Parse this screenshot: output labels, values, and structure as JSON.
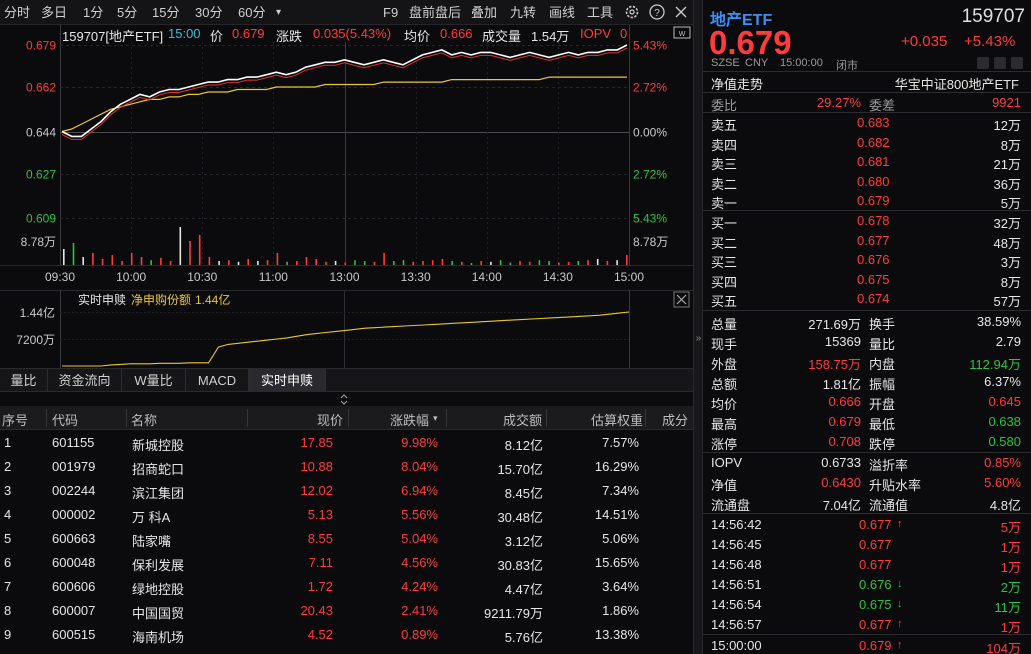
{
  "toolbar": {
    "items": [
      "分时",
      "多日",
      "1分",
      "5分",
      "15分",
      "30分",
      "60分"
    ],
    "right_items": [
      "F9",
      "盘前盘后",
      "叠加",
      "九转",
      "画线",
      "工具"
    ],
    "dropdown_glyph": "▾"
  },
  "chart_info": {
    "code_name": "159707[地产ETF]",
    "time": "15:00",
    "price_label": "价",
    "price": "0.679",
    "change_label": "涨跌",
    "change": "0.035(5.43%)",
    "avg_label": "均价",
    "avg": "0.666",
    "volume_label": "成交量",
    "volume": "1.54万",
    "iopv_label": "IOPV",
    "iopv": "0"
  },
  "chart_data": {
    "type": "line",
    "price_axis": [
      "0.679",
      "0.662",
      "0.644",
      "0.627",
      "0.609"
    ],
    "pct_axis": [
      "5.43%",
      "2.72%",
      "0.00%",
      "2.72%",
      "5.43%"
    ],
    "volume_axis_label": "8.78万",
    "time_axis": [
      "09:30",
      "10:00",
      "10:30",
      "11:00",
      "13:00",
      "13:30",
      "14:00",
      "14:30",
      "15:00"
    ],
    "ylim": [
      0.609,
      0.679
    ],
    "prev_close": 0.644,
    "series": [
      {
        "name": "价",
        "color": "#ffffff",
        "values": [
          0.644,
          0.642,
          0.642,
          0.645,
          0.648,
          0.652,
          0.655,
          0.657,
          0.659,
          0.658,
          0.66,
          0.661,
          0.661,
          0.662,
          0.663,
          0.664,
          0.664,
          0.665,
          0.665,
          0.666,
          0.666,
          0.667,
          0.668,
          0.667,
          0.668,
          0.67,
          0.671,
          0.672,
          0.672,
          0.673,
          0.672,
          0.671,
          0.672,
          0.673,
          0.672,
          0.671,
          0.673,
          0.675,
          0.676,
          0.677,
          0.675,
          0.676,
          0.675,
          0.676,
          0.676,
          0.675,
          0.674,
          0.675,
          0.676,
          0.675,
          0.674,
          0.675,
          0.676,
          0.675,
          0.676,
          0.676,
          0.677,
          0.677,
          0.679
        ]
      },
      {
        "name": "均价",
        "color": "#e8c63a",
        "values": [
          0.644,
          0.645,
          0.647,
          0.649,
          0.651,
          0.653,
          0.654,
          0.655,
          0.656,
          0.657,
          0.657,
          0.658,
          0.658,
          0.659,
          0.659,
          0.66,
          0.66,
          0.66,
          0.661,
          0.661,
          0.661,
          0.661,
          0.662,
          0.662,
          0.662,
          0.662,
          0.662,
          0.663,
          0.663,
          0.663,
          0.663,
          0.663,
          0.663,
          0.664,
          0.664,
          0.664,
          0.664,
          0.664,
          0.664,
          0.664,
          0.665,
          0.665,
          0.665,
          0.665,
          0.665,
          0.665,
          0.665,
          0.665,
          0.665,
          0.665,
          0.666,
          0.666,
          0.666,
          0.666,
          0.666,
          0.666,
          0.666,
          0.666,
          0.666
        ]
      }
    ],
    "volume_bars": [
      0.4,
      0.55,
      0.2,
      0.3,
      0.15,
      0.25,
      0.1,
      0.3,
      0.2,
      0.12,
      0.18,
      0.1,
      0.95,
      0.6,
      0.75,
      0.2,
      0.1,
      0.12,
      0.08,
      0.15,
      0.1,
      0.12,
      0.3,
      0.08,
      0.1,
      0.2,
      0.15,
      0.08,
      0.1,
      0.06,
      0.12,
      0.1,
      0.08,
      0.3,
      0.1,
      0.12,
      0.08,
      0.1,
      0.12,
      0.15,
      0.1,
      0.08,
      0.05,
      0.1,
      0.08,
      0.12,
      0.06,
      0.1,
      0.08,
      0.12,
      0.1,
      0.06,
      0.08,
      0.1,
      0.12,
      0.15,
      0.1,
      0.12,
      0.25
    ]
  },
  "sub_chart": {
    "label": "实时申赎",
    "metric_label": "净申购份额",
    "metric_value": "1.44亿",
    "axis": [
      "1.44亿",
      "7200万"
    ],
    "values": [
      0.0,
      0.0,
      0.0,
      0.0,
      0.0,
      0.02,
      0.03,
      0.04,
      0.04,
      0.04,
      0.05,
      0.05,
      0.05,
      0.06,
      0.06,
      0.06,
      0.35,
      0.4,
      0.42,
      0.44,
      0.46,
      0.48,
      0.5,
      0.52,
      0.55,
      0.58,
      0.6,
      0.62,
      0.64,
      0.66,
      0.68,
      0.7,
      0.71,
      0.72,
      0.73,
      0.74,
      0.75,
      0.76,
      0.77,
      0.78,
      0.79,
      0.8,
      0.81,
      0.82,
      0.83,
      0.84,
      0.85,
      0.86,
      0.87,
      0.88,
      0.89,
      0.9,
      0.91,
      0.92,
      0.93,
      0.94,
      0.96,
      0.98,
      1.0
    ]
  },
  "sub_tabs": [
    "量比",
    "资金流向",
    "W量比",
    "MACD",
    "实时申赎"
  ],
  "table": {
    "headers": [
      "序号",
      "代码",
      "名称",
      "现价",
      "涨跌幅",
      "成交额",
      "估算权重",
      "成分"
    ],
    "rows": [
      {
        "no": "1",
        "code": "601155",
        "name": "新城控股",
        "price": "17.85",
        "pct": "9.98%",
        "amount": "8.12亿",
        "weight": "7.57%"
      },
      {
        "no": "2",
        "code": "001979",
        "name": "招商蛇口",
        "price": "10.88",
        "pct": "8.04%",
        "amount": "15.70亿",
        "weight": "16.29%"
      },
      {
        "no": "3",
        "code": "002244",
        "name": "滨江集团",
        "price": "12.02",
        "pct": "6.94%",
        "amount": "8.45亿",
        "weight": "7.34%"
      },
      {
        "no": "4",
        "code": "000002",
        "name": "万 科A",
        "price": "5.13",
        "pct": "5.56%",
        "amount": "30.48亿",
        "weight": "14.51%"
      },
      {
        "no": "5",
        "code": "600663",
        "name": "陆家嘴",
        "price": "8.55",
        "pct": "5.04%",
        "amount": "3.12亿",
        "weight": "5.06%"
      },
      {
        "no": "6",
        "code": "600048",
        "name": "保利发展",
        "price": "7.11",
        "pct": "4.56%",
        "amount": "30.83亿",
        "weight": "15.65%"
      },
      {
        "no": "7",
        "code": "600606",
        "name": "绿地控股",
        "price": "1.72",
        "pct": "4.24%",
        "amount": "4.47亿",
        "weight": "3.64%"
      },
      {
        "no": "8",
        "code": "600007",
        "name": "中国国贸",
        "price": "20.43",
        "pct": "2.41%",
        "amount": "9211.79万",
        "weight": "1.86%"
      },
      {
        "no": "9",
        "code": "600515",
        "name": "海南机场",
        "price": "4.52",
        "pct": "0.89%",
        "amount": "5.76亿",
        "weight": "13.38%"
      }
    ]
  },
  "quote": {
    "name": "地产ETF",
    "code": "159707",
    "price": "0.679",
    "change": "+0.035",
    "pct": "+5.43%",
    "exchange": "SZSE",
    "currency": "CNY",
    "time": "15:00:00",
    "status": "闭市",
    "nav_trend": "净值走势",
    "index_name": "华宝中证800地产ETF",
    "weibi_label": "委比",
    "weibi": "29.27%",
    "weicha_label": "委差",
    "weicha": "9921"
  },
  "asks": [
    {
      "label": "卖五",
      "price": "0.683",
      "vol": "12万"
    },
    {
      "label": "卖四",
      "price": "0.682",
      "vol": "8万"
    },
    {
      "label": "卖三",
      "price": "0.681",
      "vol": "21万"
    },
    {
      "label": "卖二",
      "price": "0.680",
      "vol": "36万"
    },
    {
      "label": "卖一",
      "price": "0.679",
      "vol": "5万"
    }
  ],
  "bids": [
    {
      "label": "买一",
      "price": "0.678",
      "vol": "32万"
    },
    {
      "label": "买二",
      "price": "0.677",
      "vol": "48万"
    },
    {
      "label": "买三",
      "price": "0.676",
      "vol": "3万"
    },
    {
      "label": "买四",
      "price": "0.675",
      "vol": "8万"
    },
    {
      "label": "买五",
      "price": "0.674",
      "vol": "57万"
    }
  ],
  "stats": [
    {
      "l1": "总量",
      "v1": "271.69万",
      "c1": "white",
      "l2": "换手",
      "v2": "38.59%",
      "c2": "white"
    },
    {
      "l1": "现手",
      "v1": "15369",
      "c1": "white",
      "l2": "量比",
      "v2": "2.79",
      "c2": "white"
    },
    {
      "l1": "外盘",
      "v1": "158.75万",
      "c1": "red",
      "l2": "内盘",
      "v2": "112.94万",
      "c2": "green"
    },
    {
      "l1": "总额",
      "v1": "1.81亿",
      "c1": "white",
      "l2": "振幅",
      "v2": "6.37%",
      "c2": "white"
    },
    {
      "l1": "均价",
      "v1": "0.666",
      "c1": "red",
      "l2": "开盘",
      "v2": "0.645",
      "c2": "red"
    },
    {
      "l1": "最高",
      "v1": "0.679",
      "c1": "red",
      "l2": "最低",
      "v2": "0.638",
      "c2": "green"
    },
    {
      "l1": "涨停",
      "v1": "0.708",
      "c1": "red",
      "l2": "跌停",
      "v2": "0.580",
      "c2": "green"
    }
  ],
  "iopv_stats": [
    {
      "l1": "IOPV",
      "v1": "0.6733",
      "c1": "white",
      "l2": "溢折率",
      "v2": "0.85%",
      "c2": "red"
    },
    {
      "l1": "净值",
      "v1": "0.6430",
      "c1": "red",
      "l2": "升贴水率",
      "v2": "5.60%",
      "c2": "red"
    },
    {
      "l1": "流通盘",
      "v1": "7.04亿",
      "c1": "white",
      "l2": "流通值",
      "v2": "4.8亿",
      "c2": "white"
    }
  ],
  "ticks": [
    {
      "time": "14:56:42",
      "price": "0.677",
      "arrow": "↑",
      "vol": "5万",
      "c": "red"
    },
    {
      "time": "14:56:45",
      "price": "0.677",
      "arrow": "",
      "vol": "1万",
      "c": "red"
    },
    {
      "time": "14:56:48",
      "price": "0.677",
      "arrow": "",
      "vol": "1万",
      "c": "red"
    },
    {
      "time": "14:56:51",
      "price": "0.676",
      "arrow": "↓",
      "vol": "2万",
      "c": "green"
    },
    {
      "time": "14:56:54",
      "price": "0.675",
      "arrow": "↓",
      "vol": "11万",
      "c": "green"
    },
    {
      "time": "14:56:57",
      "price": "0.677",
      "arrow": "↑",
      "vol": "1万",
      "c": "red"
    },
    {
      "time": "15:00:00",
      "price": "0.679",
      "arrow": "↑",
      "vol": "104万",
      "c": "red"
    }
  ]
}
